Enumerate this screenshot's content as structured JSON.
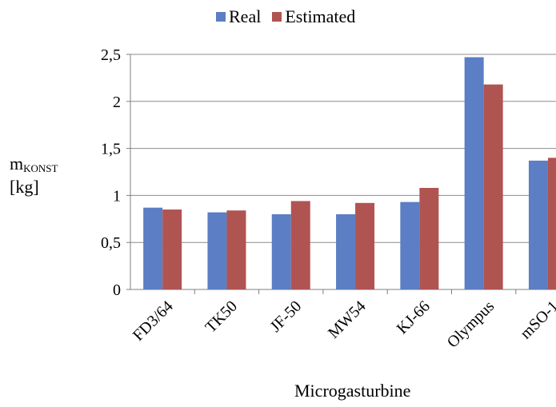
{
  "chart_data": {
    "type": "bar",
    "categories": [
      "FD3/64",
      "TK50",
      "JF-50",
      "MW54",
      "KJ-66",
      "Olympus",
      "mSO-1"
    ],
    "series": [
      {
        "name": "Real",
        "color": "#5b7ec4",
        "values": [
          0.87,
          0.82,
          0.8,
          0.8,
          0.93,
          2.47,
          1.37
        ]
      },
      {
        "name": "Estimated",
        "color": "#b05452",
        "values": [
          0.85,
          0.84,
          0.94,
          0.92,
          1.08,
          2.18,
          1.4
        ]
      }
    ],
    "yticks": [
      "0",
      "0,5",
      "1",
      "1,5",
      "2",
      "2,5"
    ],
    "ylim": [
      0,
      2.5
    ],
    "ylabel_main": "m",
    "ylabel_sub": "KONST",
    "ylabel_unit": "[kg]",
    "xlabel": "Microgasturbine",
    "grid": true,
    "legend_position": "top"
  }
}
